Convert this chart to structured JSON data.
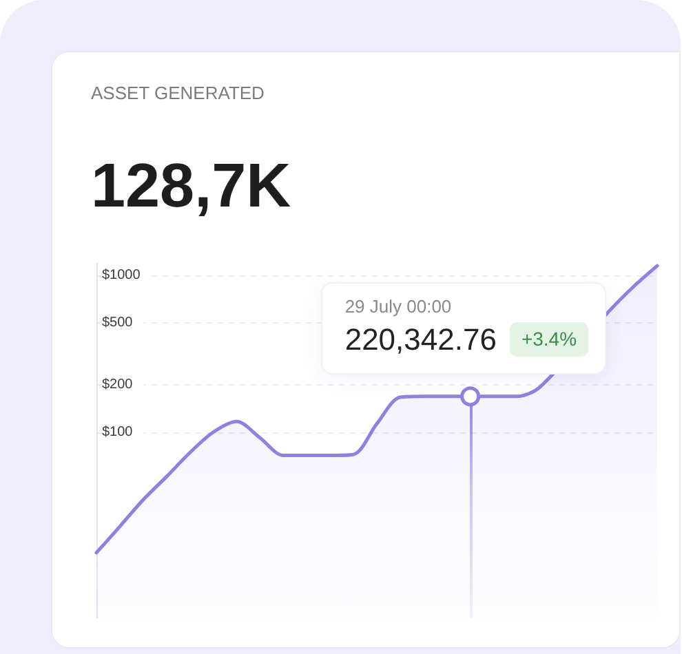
{
  "chart_data": {
    "type": "area",
    "title": "ASSET GENERATED",
    "subtitle": "128,7K",
    "categories": [
      null,
      null,
      null,
      null,
      null,
      null,
      null,
      null,
      null,
      null,
      null,
      null,
      null,
      null,
      null,
      null,
      null,
      null,
      null,
      null,
      null,
      null,
      null,
      null,
      null
    ],
    "series": [
      {
        "color": "#8f80e2",
        "marker": "none",
        "values": [
          17,
          25,
          37,
          52,
          74,
          100,
          117,
          92,
          71,
          71,
          71,
          72,
          113,
          167,
          169,
          169,
          169,
          169,
          169,
          195,
          null,
          null,
          604,
          851,
          1150
        ]
      },
      {
        "type": "scatter",
        "color": "#8f80e2",
        "values": [
          null,
          null,
          null,
          null,
          null,
          null,
          null,
          null,
          null,
          null,
          null,
          null,
          null,
          null,
          null,
          null,
          169,
          null,
          null,
          null,
          null,
          null,
          null,
          null,
          null
        ]
      }
    ],
    "ylim": [
      6.5,
      1200
    ],
    "yticks": [
      {
        "value": 100,
        "label": "$100"
      },
      {
        "value": 200,
        "label": "$200"
      },
      {
        "value": 500,
        "label": "$500"
      },
      {
        "value": 1000,
        "label": "$1000"
      }
    ],
    "log": true,
    "grid": "y",
    "tick_labels": "y",
    "marker": "circle",
    "annotations": [
      "29 July 00:00",
      "220,342.76",
      "+3.4%"
    ]
  }
}
